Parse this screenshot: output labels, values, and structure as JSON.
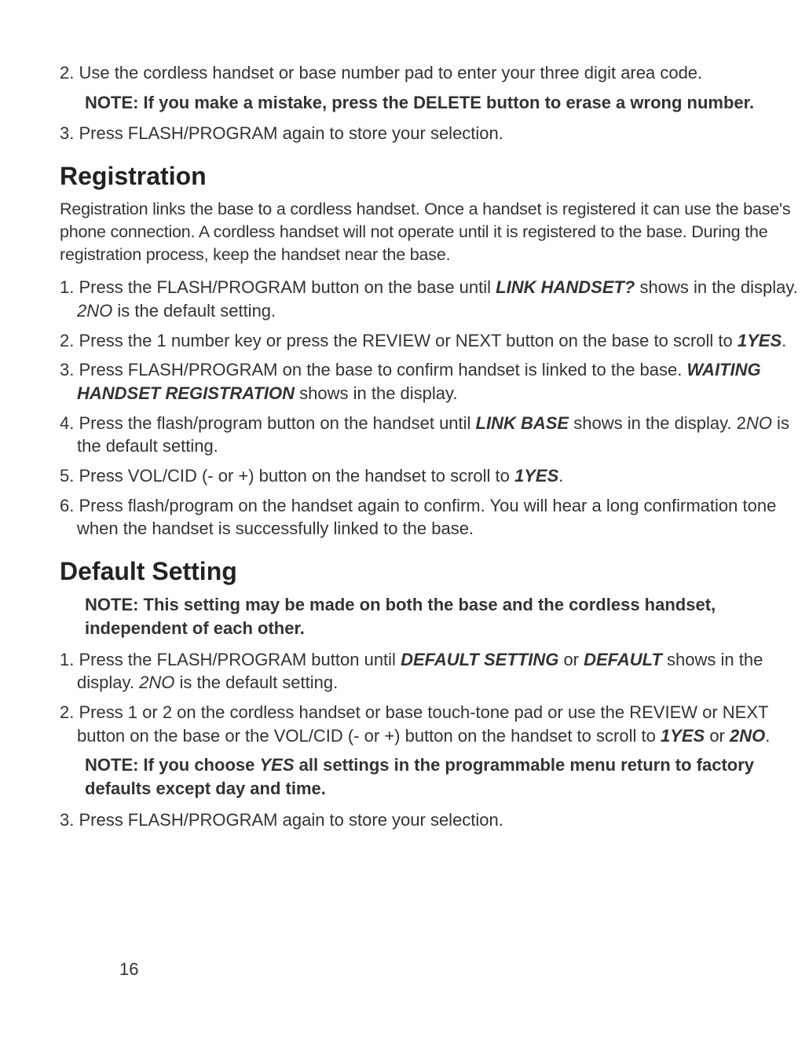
{
  "top": {
    "step2": "2. Use the cordless handset or base number pad to enter your three digit area code.",
    "note": "NOTE: If you make a mistake, press the DELETE button to erase a wrong number.",
    "step3": "3. Press FLASH/PROGRAM again to store your selection."
  },
  "registration": {
    "title": "Registration",
    "intro": "Registration links the base to a cordless handset. Once a handset is registered it can use the base's phone connection. A cordless handset will not operate until it is registered to the base. During the registration process, keep the handset near the base.",
    "step1_a": "1. Press the FLASH/PROGRAM button on the base until ",
    "step1_b": "LINK HANDSET?",
    "step1_c": " shows in the display. ",
    "step1_d": "2NO",
    "step1_e": " is the default setting.",
    "step2_a": "2. Press the 1 number key or press the REVIEW or NEXT button on the base to scroll to ",
    "step2_b": "1YES",
    "step2_c": ".",
    "step3_a": "3. Press FLASH/PROGRAM on the base to confirm handset is linked to the base. ",
    "step3_b": "WAITING HANDSET REGISTRATION",
    "step3_c": " shows in the display.",
    "step4_a": "4. Press the flash/program button on the handset until ",
    "step4_b": "LINK BASE",
    "step4_c": " shows in the display. 2",
    "step4_d": "NO",
    "step4_e": " is the default setting.",
    "step5_a": "5. Press VOL/CID (- or +) button on the handset to scroll to ",
    "step5_b": "1YES",
    "step5_c": ".",
    "step6": "6. Press flash/program on the handset again to confirm. You will hear a long confirmation tone when the handset is successfully linked to the base."
  },
  "default_setting": {
    "title": "Default Setting",
    "note1": "NOTE: This setting may be made on both the base and the cordless handset, independent of each other.",
    "step1_a": "1. Press the FLASH/PROGRAM button until ",
    "step1_b": "DEFAULT SETTING",
    "step1_c": " or ",
    "step1_d": "DEFAULT",
    "step1_e": " shows in the display. ",
    "step1_f": "2NO",
    "step1_g": " is the default setting.",
    "step2_a": "2. Press 1 or 2 on the cordless handset or base touch-tone pad or use the REVIEW or NEXT button on the base or the VOL/CID (- or +) button on the handset to scroll to ",
    "step2_b": "1YES",
    "step2_c": " or ",
    "step2_d": "2NO",
    "step2_e": ".",
    "note2_a": "NOTE: If you choose ",
    "note2_b": "YES",
    "note2_c": " all settings in the programmable menu return to factory defaults except day and time.",
    "step3": "3. Press FLASH/PROGRAM again to store your selection."
  },
  "page_num": "16"
}
